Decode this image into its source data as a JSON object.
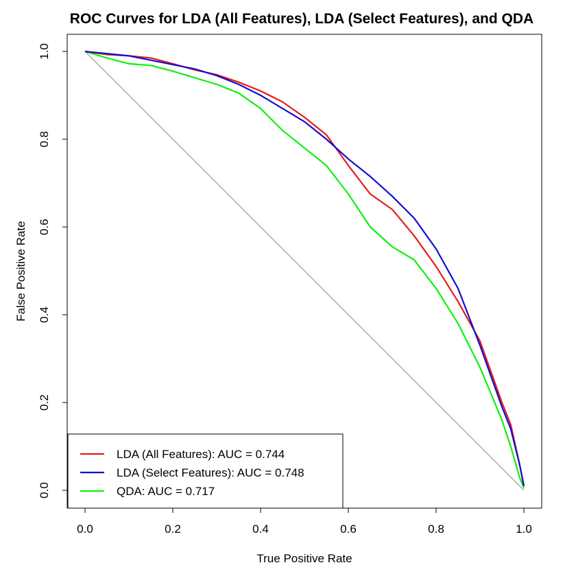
{
  "chart_data": {
    "type": "line",
    "title": "ROC Curves for LDA (All Features), LDA (Select Features), and QDA",
    "xlabel": "True Positive Rate",
    "ylabel": "False Positive Rate",
    "xlim": [
      0.0,
      1.0
    ],
    "ylim": [
      0.0,
      1.0
    ],
    "xticks": [
      "0.0",
      "0.2",
      "0.4",
      "0.6",
      "0.8",
      "1.0"
    ],
    "yticks": [
      "0.0",
      "0.2",
      "0.4",
      "0.6",
      "0.8",
      "1.0"
    ],
    "grid": false,
    "legend_position": "bottom-left",
    "reference_line": {
      "x": [
        0.0,
        1.0
      ],
      "y": [
        1.0,
        0.0
      ],
      "color": "#8c8c8c"
    },
    "series": [
      {
        "name": "LDA (All Features): AUC = 0.744",
        "color": "#e8191a",
        "x": [
          0.0,
          0.05,
          0.1,
          0.15,
          0.2,
          0.25,
          0.3,
          0.35,
          0.4,
          0.45,
          0.5,
          0.55,
          0.6,
          0.65,
          0.7,
          0.75,
          0.8,
          0.85,
          0.9,
          0.95,
          0.97,
          0.99,
          1.0
        ],
        "y": [
          1.0,
          0.993,
          0.99,
          0.985,
          0.972,
          0.958,
          0.947,
          0.93,
          0.91,
          0.885,
          0.85,
          0.81,
          0.74,
          0.675,
          0.64,
          0.58,
          0.51,
          0.43,
          0.34,
          0.2,
          0.15,
          0.06,
          0.01
        ]
      },
      {
        "name": "LDA (Select Features): AUC = 0.748",
        "color": "#0f0fcf",
        "x": [
          0.0,
          0.05,
          0.1,
          0.15,
          0.2,
          0.25,
          0.3,
          0.35,
          0.4,
          0.45,
          0.5,
          0.55,
          0.6,
          0.65,
          0.7,
          0.75,
          0.8,
          0.85,
          0.9,
          0.95,
          0.97,
          0.99,
          1.0
        ],
        "y": [
          1.0,
          0.995,
          0.99,
          0.98,
          0.97,
          0.96,
          0.945,
          0.925,
          0.9,
          0.87,
          0.84,
          0.8,
          0.755,
          0.715,
          0.67,
          0.62,
          0.55,
          0.46,
          0.33,
          0.19,
          0.14,
          0.06,
          0.01
        ]
      },
      {
        "name": "QDA: AUC = 0.717",
        "color": "#11ee11",
        "x": [
          0.0,
          0.05,
          0.1,
          0.15,
          0.2,
          0.25,
          0.3,
          0.35,
          0.4,
          0.45,
          0.5,
          0.55,
          0.6,
          0.65,
          0.7,
          0.75,
          0.8,
          0.85,
          0.9,
          0.95,
          0.97,
          0.99,
          1.0
        ],
        "y": [
          1.0,
          0.985,
          0.972,
          0.968,
          0.955,
          0.94,
          0.925,
          0.905,
          0.87,
          0.82,
          0.78,
          0.74,
          0.675,
          0.6,
          0.555,
          0.525,
          0.46,
          0.38,
          0.28,
          0.16,
          0.1,
          0.03,
          0.005
        ]
      }
    ]
  }
}
